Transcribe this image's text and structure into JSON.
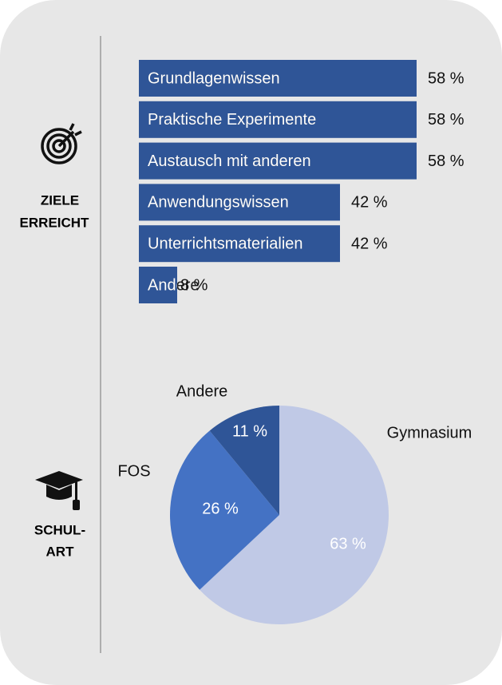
{
  "chart_data": [
    {
      "type": "bar",
      "side_label": [
        "ZIELE",
        "ERREICHT"
      ],
      "categories": [
        "Grundlagenwissen",
        "Praktische Experimente",
        "Austausch mit anderen",
        "Anwendungswissen",
        "Unterrichtsmaterialien",
        "Andere"
      ],
      "values": [
        58,
        58,
        58,
        42,
        42,
        8
      ],
      "value_labels": [
        "58 %",
        "58 %",
        "58 %",
        "42 %",
        "42 %",
        "8 %"
      ],
      "color": "#2f5597"
    },
    {
      "type": "pie",
      "side_label": [
        "SCHUL-",
        "ART"
      ],
      "categories": [
        "Gymnasium",
        "FOS",
        "Andere"
      ],
      "values": [
        63,
        26,
        11
      ],
      "value_labels": [
        "63 %",
        "26 %",
        "11 %"
      ],
      "colors": [
        "#c0c9e6",
        "#4472c4",
        "#2f5597"
      ]
    }
  ]
}
